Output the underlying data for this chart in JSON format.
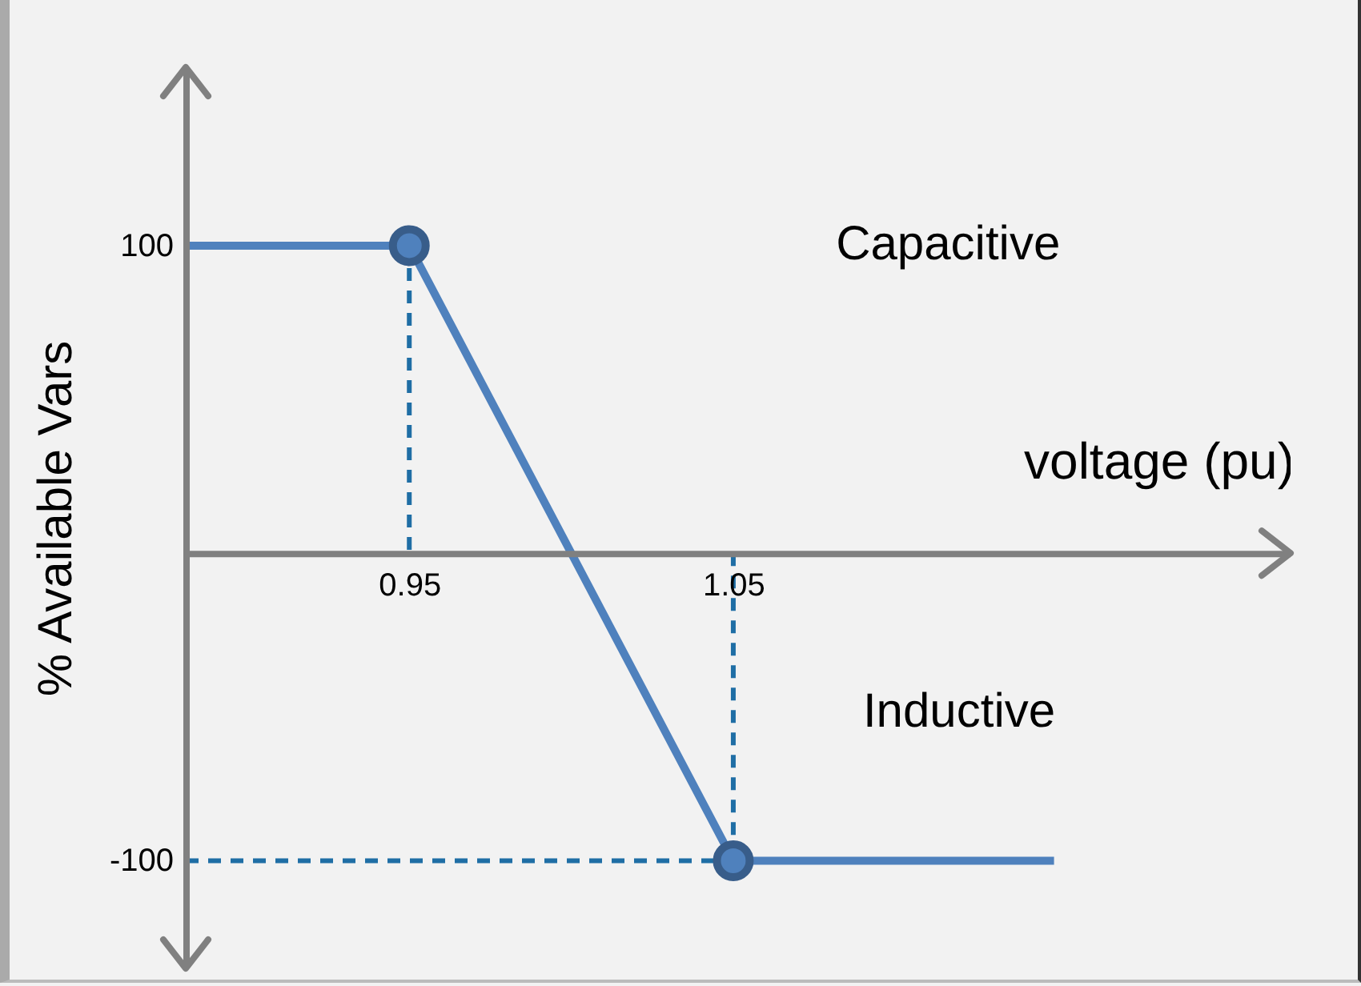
{
  "chart_data": {
    "type": "line",
    "xlabel": "voltage (pu)",
    "ylabel": "% Available Vars",
    "xlim": [
      0.881,
      1.222
    ],
    "ylim": [
      -135,
      158
    ],
    "xticks": [
      0.95,
      1.05
    ],
    "yticks": [
      -100,
      100
    ],
    "grid": false,
    "series": [
      {
        "type": "line",
        "color": "#4f81bd",
        "x": [
          0.881,
          0.95,
          1.05,
          1.149
        ],
        "values": [
          100,
          100,
          -100,
          -100
        ],
        "line_style": "solid"
      },
      {
        "type": "scatter",
        "color": "#4f81bd",
        "x": [
          0.95,
          1.05
        ],
        "values": [
          100,
          -100
        ],
        "marker": "circle"
      },
      {
        "type": "line",
        "color": "#1f6ea5",
        "x": [
          0.95,
          0.95
        ],
        "values": [
          100,
          0
        ],
        "line_style": "dashed"
      },
      {
        "type": "line",
        "color": "#1f6ea5",
        "x": [
          1.05,
          1.05
        ],
        "values": [
          0,
          -100
        ],
        "line_style": "dashed"
      },
      {
        "type": "line",
        "color": "#1f6ea5",
        "x": [
          0.881,
          1.05
        ],
        "values": [
          -100,
          -100
        ],
        "line_style": "dashed"
      }
    ],
    "annotations": [
      "Capacitive",
      "Inductive"
    ]
  }
}
